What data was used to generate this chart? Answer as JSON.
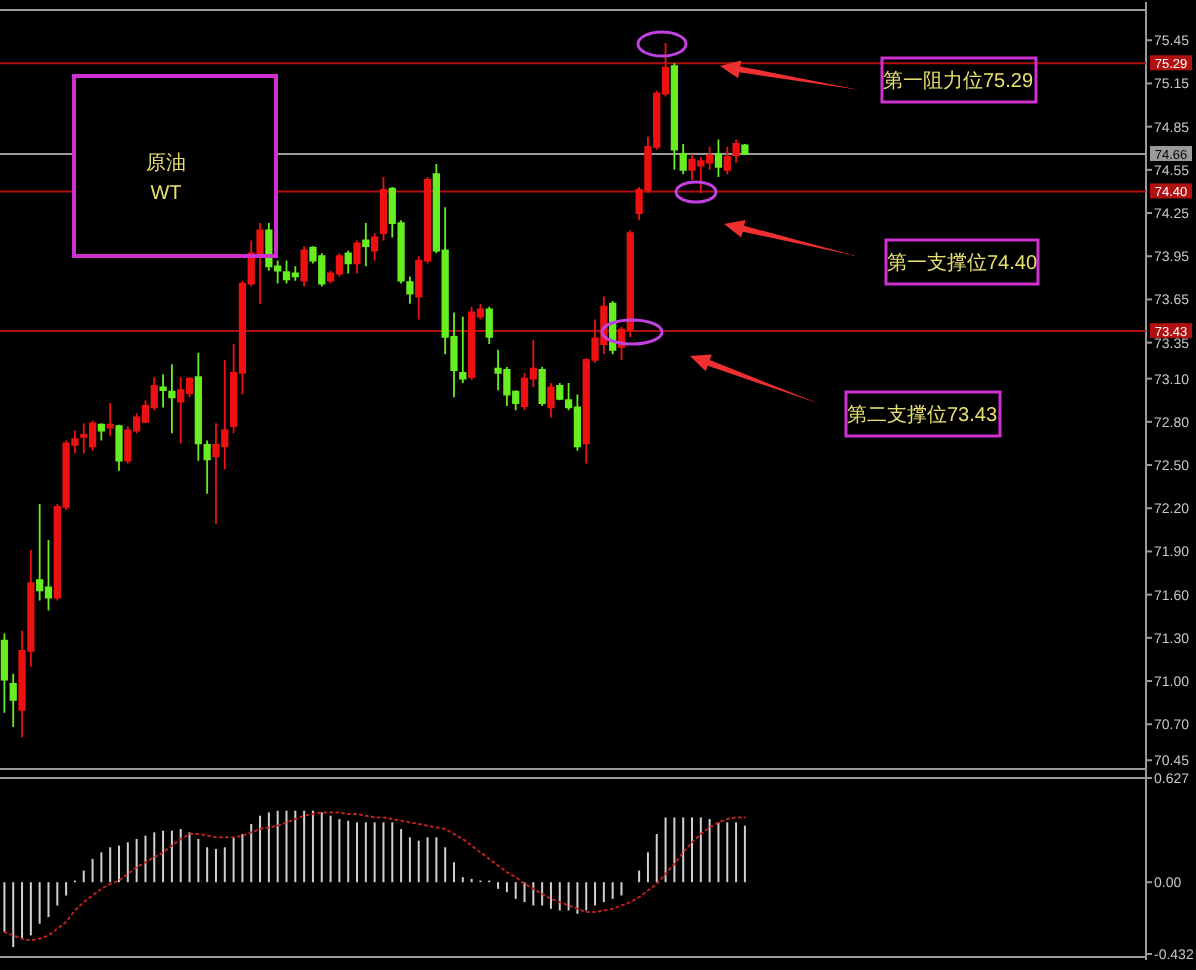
{
  "chart_data": [
    {
      "type": "candlestick",
      "categories": [
        null,
        null,
        null,
        null,
        null,
        null,
        null,
        null,
        null,
        null,
        null,
        null,
        null,
        null,
        null,
        null,
        null,
        null,
        null,
        null,
        null,
        null,
        null,
        null,
        null,
        null,
        null,
        null,
        null,
        null,
        null,
        null,
        null,
        null,
        null,
        null,
        null,
        null,
        null,
        null,
        null,
        null,
        null,
        null,
        null,
        null,
        null,
        null,
        null,
        null,
        null,
        null,
        null,
        null,
        null,
        null,
        null,
        null,
        null,
        null,
        null,
        null,
        null,
        null,
        null,
        null,
        null,
        null,
        null,
        null,
        null,
        null,
        null,
        null,
        null,
        null,
        null,
        null,
        null,
        null,
        null,
        null,
        null,
        null,
        null,
        null,
        null,
        null,
        null,
        null,
        null,
        null,
        null,
        null,
        null,
        null,
        null,
        null,
        null,
        null,
        null,
        null,
        null,
        null,
        null,
        null,
        null,
        null,
        null,
        null,
        null,
        null,
        null,
        null,
        null,
        null,
        null,
        null,
        null,
        null,
        null,
        null,
        null,
        null,
        null,
        null,
        null,
        null,
        null,
        null
      ],
      "ohlc": [
        [
          71.28,
          71.33,
          70.78,
          71.01
        ],
        [
          70.98,
          71.05,
          70.68,
          70.87
        ],
        [
          70.8,
          71.35,
          70.61,
          71.21
        ],
        [
          71.21,
          71.91,
          71.1,
          71.68
        ],
        [
          71.7,
          72.23,
          71.56,
          71.63
        ],
        [
          71.65,
          71.98,
          71.49,
          71.58
        ],
        [
          71.58,
          72.23,
          71.56,
          72.21
        ],
        [
          72.21,
          72.67,
          72.19,
          72.65
        ],
        [
          72.64,
          72.74,
          72.58,
          72.68
        ],
        [
          72.7,
          72.79,
          72.58,
          72.71
        ],
        [
          72.63,
          72.81,
          72.6,
          72.79
        ],
        [
          72.78,
          72.79,
          72.67,
          72.74
        ],
        [
          72.76,
          72.93,
          72.7,
          72.78
        ],
        [
          72.77,
          72.78,
          72.46,
          72.53
        ],
        [
          72.53,
          72.77,
          72.51,
          72.74
        ],
        [
          72.74,
          72.86,
          72.72,
          72.83
        ],
        [
          72.8,
          72.95,
          72.79,
          72.91
        ],
        [
          72.9,
          73.11,
          72.88,
          73.05
        ],
        [
          73.04,
          73.13,
          72.9,
          73.02
        ],
        [
          73.01,
          73.2,
          72.72,
          72.97
        ],
        [
          72.94,
          73.11,
          72.65,
          73.02
        ],
        [
          73.0,
          73.11,
          72.97,
          73.1
        ],
        [
          73.11,
          73.28,
          72.53,
          72.65
        ],
        [
          72.64,
          72.67,
          72.3,
          72.54
        ],
        [
          72.56,
          72.79,
          72.09,
          72.64
        ],
        [
          72.63,
          73.23,
          72.47,
          72.74
        ],
        [
          72.77,
          73.34,
          72.72,
          73.14
        ],
        [
          73.14,
          73.78,
          72.99,
          73.76
        ],
        [
          73.76,
          74.06,
          73.74,
          73.97
        ],
        [
          73.97,
          74.18,
          73.62,
          74.13
        ],
        [
          74.13,
          74.18,
          73.85,
          73.88
        ],
        [
          73.88,
          73.92,
          73.76,
          73.85
        ],
        [
          73.84,
          73.92,
          73.76,
          73.79
        ],
        [
          73.83,
          73.88,
          73.78,
          73.81
        ],
        [
          73.78,
          74.02,
          73.74,
          73.99
        ],
        [
          74.01,
          74.02,
          73.9,
          73.92
        ],
        [
          73.95,
          73.97,
          73.74,
          73.76
        ],
        [
          73.78,
          73.85,
          73.76,
          73.83
        ],
        [
          73.83,
          73.97,
          73.81,
          73.95
        ],
        [
          73.97,
          73.99,
          73.83,
          73.9
        ],
        [
          73.9,
          74.06,
          73.83,
          74.04
        ],
        [
          74.06,
          74.18,
          73.88,
          74.02
        ],
        [
          73.99,
          74.11,
          73.92,
          74.08
        ],
        [
          74.11,
          74.5,
          74.06,
          74.41
        ],
        [
          74.42,
          74.43,
          74.08,
          74.18
        ],
        [
          74.18,
          74.2,
          73.76,
          73.78
        ],
        [
          73.77,
          73.81,
          73.62,
          73.69
        ],
        [
          73.67,
          73.95,
          73.51,
          73.92
        ],
        [
          73.92,
          74.5,
          73.9,
          74.48
        ],
        [
          74.52,
          74.59,
          73.97,
          73.99
        ],
        [
          73.99,
          74.29,
          73.27,
          73.39
        ],
        [
          73.39,
          73.56,
          72.97,
          73.16
        ],
        [
          73.14,
          73.53,
          73.07,
          73.1
        ],
        [
          73.11,
          73.6,
          73.09,
          73.56
        ],
        [
          73.53,
          73.62,
          73.51,
          73.58
        ],
        [
          73.58,
          73.6,
          73.34,
          73.39
        ],
        [
          73.17,
          73.3,
          73.02,
          73.14
        ],
        [
          73.16,
          73.18,
          72.91,
          72.99
        ],
        [
          73.01,
          73.02,
          72.88,
          72.93
        ],
        [
          72.91,
          73.14,
          72.88,
          73.1
        ],
        [
          73.1,
          73.37,
          73.04,
          73.17
        ],
        [
          73.16,
          73.18,
          72.91,
          72.93
        ],
        [
          72.9,
          73.07,
          72.83,
          73.04
        ],
        [
          73.05,
          73.07,
          72.95,
          72.96
        ],
        [
          72.95,
          73.07,
          72.88,
          72.9
        ],
        [
          72.9,
          72.99,
          72.6,
          72.63
        ],
        [
          72.65,
          73.24,
          72.51,
          73.23
        ],
        [
          73.23,
          73.51,
          73.21,
          73.38
        ],
        [
          73.34,
          73.67,
          73.27,
          73.6
        ],
        [
          73.62,
          73.64,
          73.27,
          73.3
        ],
        [
          73.32,
          73.46,
          73.23,
          73.44
        ],
        [
          73.44,
          74.13,
          73.39,
          74.11
        ],
        [
          74.25,
          74.43,
          74.2,
          74.41
        ],
        [
          74.41,
          74.78,
          74.39,
          74.71
        ],
        [
          74.71,
          75.1,
          74.69,
          75.08
        ],
        [
          75.08,
          75.43,
          75.06,
          75.26
        ],
        [
          75.27,
          75.29,
          74.55,
          74.69
        ],
        [
          74.66,
          74.73,
          74.52,
          74.55
        ],
        [
          74.55,
          74.66,
          74.48,
          74.62
        ],
        [
          74.58,
          74.64,
          74.39,
          74.61
        ],
        [
          74.6,
          74.71,
          74.55,
          74.65
        ],
        [
          74.66,
          74.76,
          74.5,
          74.57
        ],
        [
          74.55,
          74.71,
          74.52,
          74.64
        ],
        [
          74.65,
          74.76,
          74.6,
          74.73
        ],
        [
          74.72,
          74.73,
          74.66,
          74.66
        ],
        null,
        null,
        null,
        null,
        null,
        null,
        null,
        null,
        null,
        null,
        null,
        null,
        null,
        null,
        null,
        null,
        null,
        null,
        null,
        null,
        null,
        null,
        null,
        null,
        null,
        null,
        null,
        null,
        null,
        null,
        null,
        null,
        null,
        null,
        null,
        null,
        null,
        null,
        null,
        null,
        null,
        null,
        null,
        null,
        null
      ],
      "colors": [
        "#66ee22",
        "#66ee22",
        "#ee1111",
        "#ee1111",
        "#66ee22",
        "#66ee22",
        "#ee1111",
        "#ee1111",
        "#ee1111",
        "#ee1111",
        "#ee1111",
        "#66ee22",
        "#ee1111",
        "#66ee22",
        "#ee1111",
        "#ee1111",
        "#ee1111",
        "#ee1111",
        "#66ee22",
        "#66ee22",
        "#ee1111",
        "#ee1111",
        "#66ee22",
        "#66ee22",
        "#ee1111",
        "#ee1111",
        "#ee1111",
        "#ee1111",
        "#ee1111",
        "#ee1111",
        "#66ee22",
        "#66ee22",
        "#66ee22",
        "#66ee22",
        "#ee1111",
        "#66ee22",
        "#66ee22",
        "#ee1111",
        "#ee1111",
        "#66ee22",
        "#ee1111",
        "#66ee22",
        "#ee1111",
        "#ee1111",
        "#66ee22",
        "#66ee22",
        "#66ee22",
        "#ee1111",
        "#ee1111",
        "#66ee22",
        "#66ee22",
        "#66ee22",
        "#66ee22",
        "#ee1111",
        "#ee1111",
        "#66ee22",
        "#66ee22",
        "#66ee22",
        "#66ee22",
        "#ee1111",
        "#ee1111",
        "#66ee22",
        "#ee1111",
        "#66ee22",
        "#66ee22",
        "#66ee22",
        "#ee1111",
        "#ee1111",
        "#ee1111",
        "#66ee22",
        "#ee1111",
        "#ee1111",
        "#ee1111",
        "#ee1111",
        "#ee1111",
        "#ee1111",
        "#66ee22",
        "#66ee22",
        "#ee1111",
        "#ee1111",
        "#ee1111",
        "#66ee22",
        "#ee1111",
        "#ee1111",
        "#66ee22",
        null,
        null,
        null,
        null,
        null,
        null,
        null,
        null,
        null,
        null,
        null,
        null,
        null,
        null,
        null,
        null,
        null,
        null,
        null,
        null,
        null,
        null,
        null,
        null,
        null,
        null,
        null,
        null,
        null,
        null,
        null,
        null,
        null,
        null,
        null,
        null,
        null,
        null,
        null,
        null,
        null,
        null,
        null,
        null,
        null
      ],
      "ylim": [
        70.41,
        75.66
      ],
      "yticks": [
        75.45,
        75.15,
        74.85,
        74.55,
        74.25,
        73.95,
        73.65,
        73.35,
        {
          "value": 73.1,
          "label": "73.10"
        },
        {
          "value": 72.8,
          "label": "72.80"
        },
        {
          "value": 72.5,
          "label": "72.50"
        },
        {
          "value": 72.2,
          "label": "72.20"
        },
        {
          "value": 71.9,
          "label": "71.90"
        },
        {
          "value": 71.6,
          "label": "71.60"
        },
        {
          "value": 71.3,
          "label": "71.30"
        },
        {
          "value": 71,
          "label": "71.00"
        },
        {
          "value": 70.7,
          "label": "70.70"
        },
        70.45
      ],
      "tick_labels": "y",
      "ref_lines": [
        {
          "axis": "y",
          "value": 75.29,
          "label": "75.29",
          "color": "#b01010"
        },
        {
          "axis": "y",
          "value": 74.66,
          "label": "74.66",
          "color": "#9a9a9a"
        },
        {
          "axis": "y",
          "value": 74.4,
          "label": "74.40",
          "color": "#b01010"
        },
        {
          "axis": "y",
          "value": 73.43,
          "label": "73.43",
          "color": "#b01010"
        }
      ],
      "annotations": [
        "原油",
        "WT",
        "第一阻力位75.29",
        "第一支撑位74.40",
        "第二支撑位73.43"
      ]
    },
    {
      "type": "bar",
      "categories": [
        null,
        null,
        null,
        null,
        null,
        null,
        null,
        null,
        null,
        null,
        null,
        null,
        null,
        null,
        null,
        null,
        null,
        null,
        null,
        null,
        null,
        null,
        null,
        null,
        null,
        null,
        null,
        null,
        null,
        null,
        null,
        null,
        null,
        null,
        null,
        null,
        null,
        null,
        null,
        null,
        null,
        null,
        null,
        null,
        null,
        null,
        null,
        null,
        null,
        null,
        null,
        null,
        null,
        null,
        null,
        null,
        null,
        null,
        null,
        null,
        null,
        null,
        null,
        null,
        null,
        null,
        null,
        null,
        null,
        null,
        null,
        null,
        null,
        null,
        null,
        null,
        null,
        null,
        null,
        null,
        null,
        null,
        null,
        null,
        null,
        null,
        null,
        null,
        null,
        null,
        null,
        null,
        null,
        null,
        null,
        null,
        null,
        null,
        null,
        null,
        null,
        null,
        null,
        null,
        null,
        null,
        null,
        null,
        null,
        null,
        null,
        null,
        null,
        null,
        null,
        null,
        null,
        null,
        null,
        null,
        null,
        null,
        null,
        null,
        null,
        null,
        null,
        null,
        null,
        null
      ],
      "series": [
        {
          "type": "bar",
          "color": "#d0d0d0",
          "values": [
            -0.3,
            -0.39,
            -0.34,
            -0.32,
            -0.25,
            -0.21,
            -0.14,
            -0.08,
            0.01,
            0.07,
            0.14,
            0.18,
            0.21,
            0.22,
            0.24,
            0.26,
            0.28,
            0.3,
            0.31,
            0.31,
            0.32,
            0.3,
            0.26,
            0.21,
            0.2,
            0.21,
            0.27,
            0.29,
            0.35,
            0.4,
            0.42,
            0.43,
            0.43,
            0.43,
            0.43,
            0.43,
            0.42,
            0.4,
            0.38,
            0.37,
            0.36,
            0.36,
            0.36,
            0.36,
            0.36,
            0.32,
            0.27,
            0.25,
            0.27,
            0.27,
            0.21,
            0.12,
            0.03,
            0.02,
            0.01,
            0.01,
            -0.04,
            -0.06,
            -0.1,
            -0.12,
            -0.14,
            -0.14,
            -0.16,
            -0.17,
            -0.17,
            -0.19,
            -0.17,
            -0.14,
            -0.12,
            -0.1,
            -0.08,
            null,
            0.07,
            0.18,
            0.29,
            0.39,
            0.39,
            0.39,
            0.39,
            0.39,
            0.38,
            0.36,
            0.36,
            0.36,
            0.34,
            null,
            null,
            null,
            null,
            null,
            null,
            null,
            null,
            null,
            null,
            null,
            null,
            null,
            null,
            null,
            null,
            null,
            null,
            null,
            null,
            null,
            null,
            null,
            null,
            null,
            null,
            null,
            null,
            null,
            null,
            null,
            null,
            null,
            null,
            null,
            null,
            null,
            null,
            null,
            null,
            null,
            null,
            null,
            null,
            null
          ]
        },
        {
          "type": "line",
          "color": "#c02020",
          "line_style": "dotted",
          "values": [
            -0.3,
            -0.32,
            -0.34,
            -0.35,
            -0.34,
            -0.32,
            -0.28,
            -0.24,
            -0.17,
            -0.12,
            -0.08,
            -0.04,
            -0.01,
            0.01,
            0.05,
            0.09,
            0.12,
            0.15,
            0.18,
            0.22,
            0.26,
            0.29,
            0.29,
            0.28,
            0.27,
            0.27,
            0.27,
            0.28,
            0.3,
            0.32,
            0.33,
            0.34,
            0.36,
            0.38,
            0.4,
            0.41,
            0.42,
            0.42,
            0.42,
            0.41,
            0.41,
            0.4,
            0.39,
            0.39,
            0.38,
            0.37,
            0.36,
            0.35,
            0.34,
            0.33,
            0.32,
            0.29,
            0.26,
            0.22,
            0.18,
            0.14,
            0.1,
            0.06,
            0.03,
            -0.01,
            -0.04,
            -0.07,
            -0.1,
            -0.12,
            -0.14,
            -0.16,
            -0.18,
            -0.18,
            -0.17,
            -0.16,
            -0.14,
            -0.12,
            -0.09,
            -0.05,
            -0.01,
            0.05,
            0.11,
            0.18,
            0.24,
            0.29,
            0.33,
            0.36,
            0.38,
            0.39,
            0.39,
            null,
            null,
            null,
            null,
            null,
            null,
            null,
            null,
            null,
            null,
            null,
            null,
            null,
            null,
            null,
            null,
            null,
            null,
            null,
            null,
            null,
            null,
            null,
            null,
            null,
            null,
            null,
            null,
            null,
            null,
            null,
            null,
            null,
            null,
            null,
            null,
            null,
            null,
            null,
            null,
            null,
            null,
            null,
            null,
            null
          ]
        }
      ],
      "ylim": [
        -0.432,
        0.627
      ],
      "yticks": [
        0.627,
        {
          "value": 0,
          "label": "0.00"
        },
        -0.432
      ],
      "tick_labels": "y"
    }
  ]
}
